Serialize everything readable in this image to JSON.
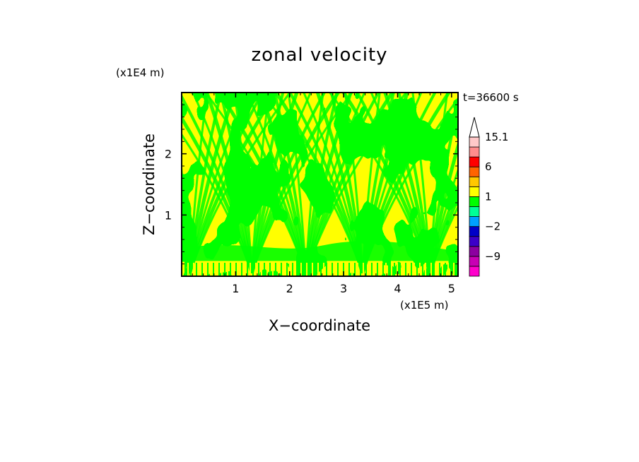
{
  "chart_data": {
    "type": "heatmap",
    "title": "zonal velocity",
    "xlabel": "X−coordinate",
    "ylabel": "Z−coordinate",
    "x_scale_label": "(x1E5 m)",
    "y_scale_label": "(x1E4 m)",
    "time_label": "t=36600 s",
    "xlim": [
      0,
      5.12
    ],
    "ylim": [
      0,
      3.0
    ],
    "x_ticks": [
      1,
      2,
      3,
      4,
      5
    ],
    "x_tick_labels": [
      "1",
      "2",
      "3",
      "4",
      "5"
    ],
    "y_ticks": [
      1,
      2
    ],
    "y_tick_labels": [
      "1",
      "2"
    ],
    "colorbar": {
      "levels": [
        -15,
        -12,
        -9,
        -6,
        -3,
        -2,
        -1,
        0,
        1,
        2,
        3,
        6,
        9,
        12,
        15.1
      ],
      "labeled_levels": [
        "15.1",
        "6",
        "1",
        "−2",
        "−9"
      ],
      "colors": [
        "#ff00cc",
        "#c800b4",
        "#8c00a0",
        "#3c00c8",
        "#0000c8",
        "#00a0ff",
        "#00ff96",
        "#00ff00",
        "#ffff00",
        "#ffc800",
        "#ff6400",
        "#ff0000",
        "#ff8c8c",
        "#ffc8c8"
      ],
      "extend_max": true
    },
    "dominant_colors": {
      "positive_weak": "#ffff00",
      "near_zero": "#00ff00"
    },
    "grid": false
  }
}
